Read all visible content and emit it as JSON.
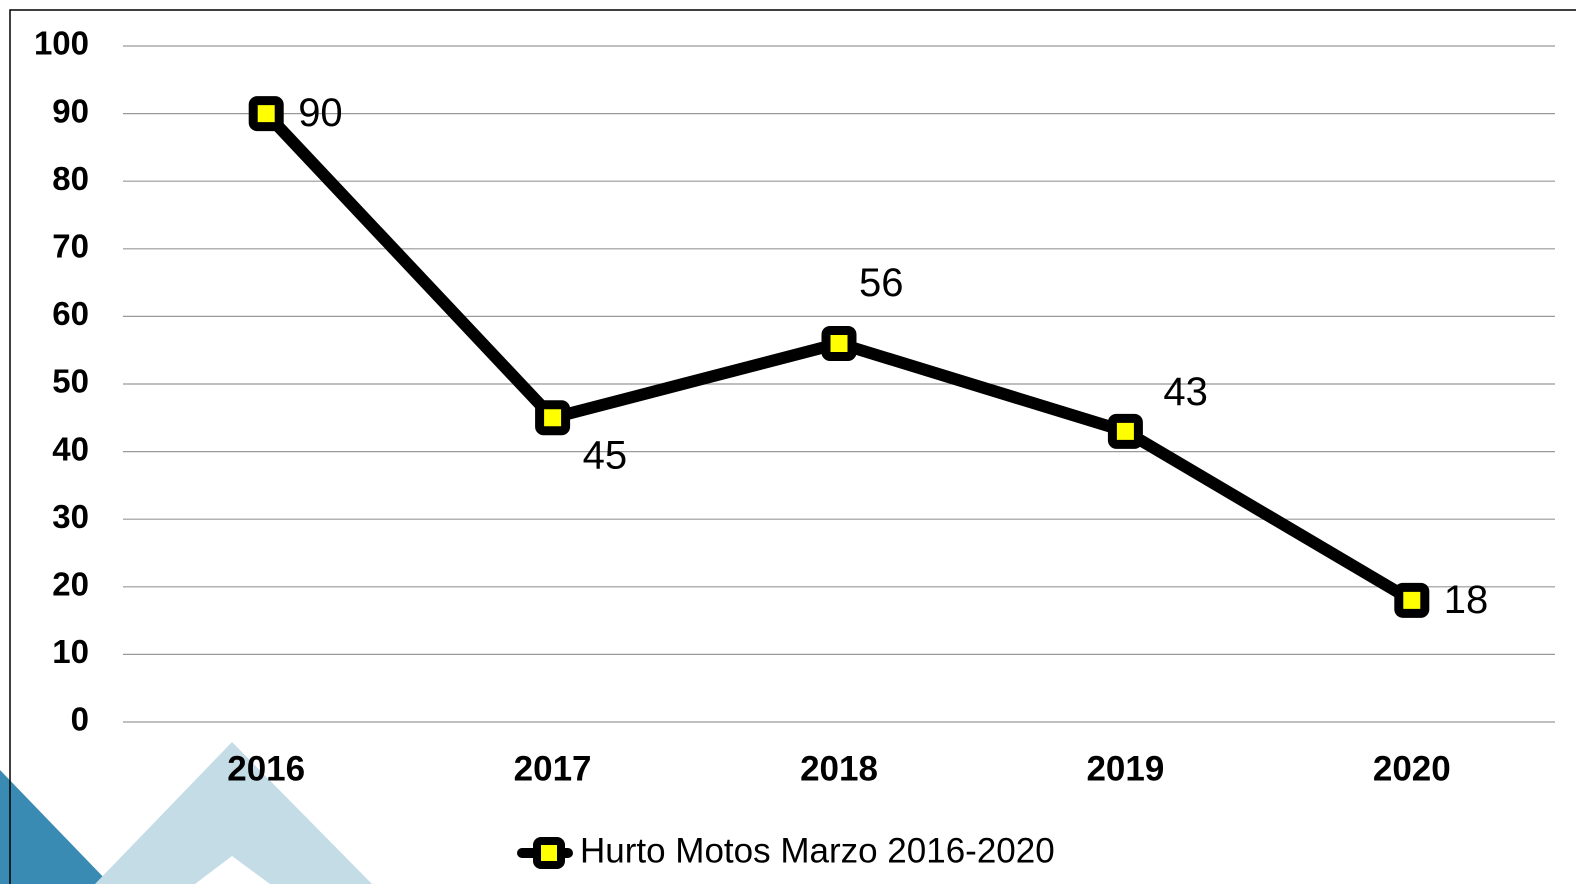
{
  "chart_data": {
    "type": "line",
    "categories": [
      "2016",
      "2017",
      "2018",
      "2019",
      "2020"
    ],
    "series": [
      {
        "name": "Hurto Motos Marzo 2016-2020",
        "color": "#000000",
        "marker_color": "#ffff00",
        "values": [
          90,
          45,
          56,
          43,
          18
        ]
      }
    ],
    "ylim": [
      0,
      100
    ],
    "yticks": [
      0,
      10,
      20,
      30,
      40,
      50,
      60,
      70,
      80,
      90,
      100
    ],
    "grid": true,
    "legend": "bottom"
  }
}
